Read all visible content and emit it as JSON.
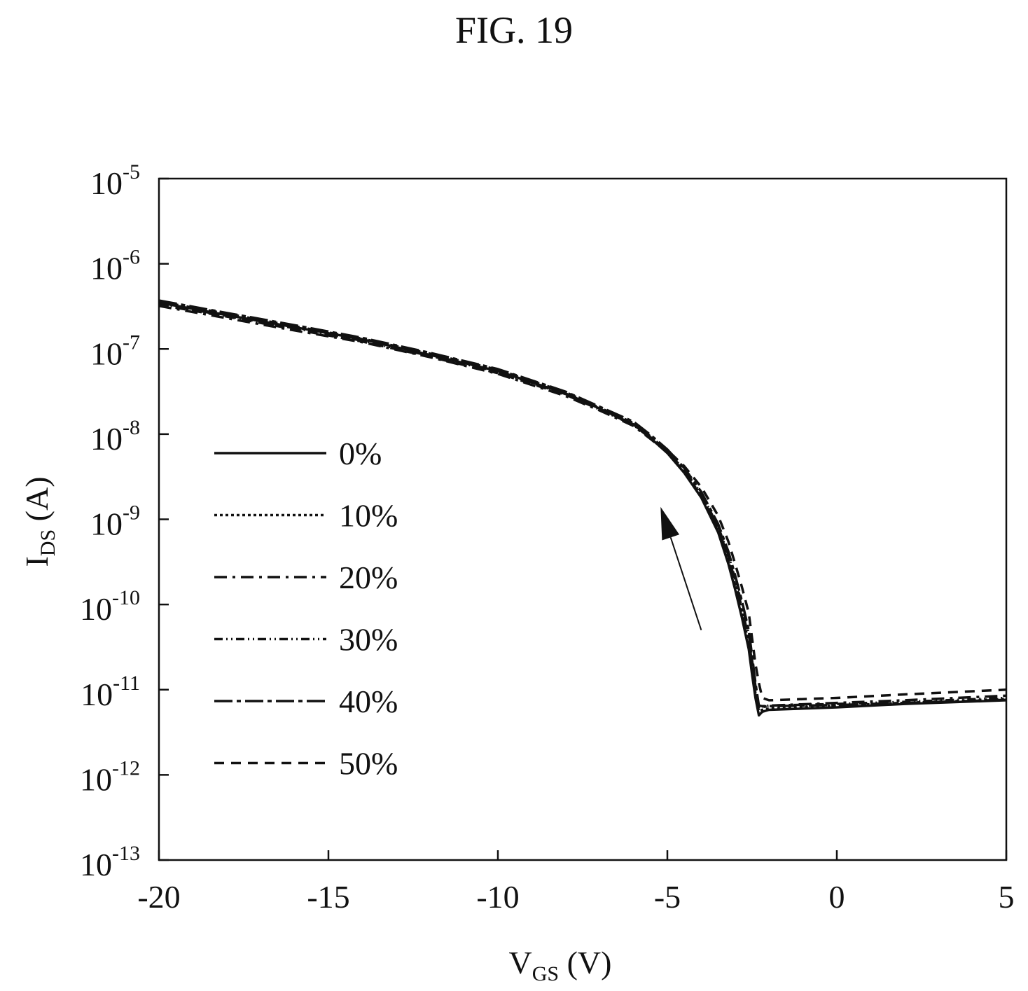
{
  "figure": {
    "title": "FIG. 19"
  },
  "chart_data": {
    "type": "line",
    "xlabel": {
      "main": "V",
      "sub": "GS",
      "unit": " (V)"
    },
    "ylabel": {
      "main": "I",
      "sub": "DS",
      "unit": " (A)"
    },
    "xlim": [
      -20,
      5
    ],
    "ylim_exponent": [
      -13,
      -5
    ],
    "y_scale": "log",
    "x_ticks": [
      {
        "value": -20,
        "label": "-20"
      },
      {
        "value": -15,
        "label": "-15"
      },
      {
        "value": -10,
        "label": "-10"
      },
      {
        "value": -5,
        "label": "-5"
      },
      {
        "value": 0,
        "label": "0"
      },
      {
        "value": 5,
        "label": "5"
      }
    ],
    "y_ticks": [
      {
        "exp": -5,
        "base": "10",
        "sup": "-5"
      },
      {
        "exp": -6,
        "base": "10",
        "sup": "-6"
      },
      {
        "exp": -7,
        "base": "10",
        "sup": "-7"
      },
      {
        "exp": -8,
        "base": "10",
        "sup": "-8"
      },
      {
        "exp": -9,
        "base": "10",
        "sup": "-9"
      },
      {
        "exp": -10,
        "base": "10",
        "sup": "-10"
      },
      {
        "exp": -11,
        "base": "10",
        "sup": "-11"
      },
      {
        "exp": -12,
        "base": "10",
        "sup": "-12"
      },
      {
        "exp": -13,
        "base": "10",
        "sup": "-13"
      }
    ],
    "legend_position": "left",
    "grid": false,
    "annotation": {
      "type": "arrow",
      "direction": "up-left",
      "from": [
        -4.0,
        5e-11
      ],
      "to": [
        -5.2,
        1.4e-09
      ]
    },
    "series": [
      {
        "name": "0%",
        "dash": "",
        "x": [
          -20,
          -18,
          -16,
          -14,
          -12,
          -10,
          -8,
          -7,
          -6,
          -5.5,
          -5,
          -4.5,
          -4,
          -3.5,
          -3.2,
          -3,
          -2.8,
          -2.6,
          -2.5,
          -2.4,
          -2.3,
          -2.2,
          -2,
          0,
          2,
          5
        ],
        "y": [
          3.5e-07,
          2.5e-07,
          1.8e-07,
          1.3e-07,
          8.5e-08,
          5.5e-08,
          3e-08,
          2e-08,
          1.3e-08,
          9e-09,
          6e-09,
          3.5e-09,
          1.8e-09,
          7e-10,
          3e-10,
          1.5e-10,
          7e-11,
          3e-11,
          1.5e-11,
          8e-12,
          5e-12,
          5.5e-12,
          5.8e-12,
          6.2e-12,
          6.8e-12,
          7.5e-12
        ]
      },
      {
        "name": "10%",
        "dash": "4 4",
        "x": [
          -20,
          -18,
          -16,
          -14,
          -12,
          -10,
          -8,
          -7,
          -6,
          -5.5,
          -5,
          -4.5,
          -4,
          -3.5,
          -3.2,
          -3,
          -2.8,
          -2.6,
          -2.5,
          -2.4,
          -2.3,
          -2.2,
          -2,
          0,
          2,
          5
        ],
        "y": [
          3.6e-07,
          2.6e-07,
          1.85e-07,
          1.32e-07,
          8.8e-08,
          5.7e-08,
          3.1e-08,
          2.05e-08,
          1.35e-08,
          9.4e-09,
          6.3e-09,
          3.7e-09,
          1.9e-09,
          7.5e-10,
          3.3e-10,
          1.7e-10,
          8e-11,
          3.5e-11,
          1.8e-11,
          9e-12,
          5.6e-12,
          5.8e-12,
          6e-12,
          6.5e-12,
          7e-12,
          7.8e-12
        ]
      },
      {
        "name": "20%",
        "dash": "18 8 4 8",
        "x": [
          -20,
          -18,
          -16,
          -14,
          -12,
          -10,
          -8,
          -7,
          -6,
          -5.5,
          -5,
          -4.5,
          -4,
          -3.5,
          -3.2,
          -3,
          -2.8,
          -2.6,
          -2.5,
          -2.4,
          -2.3,
          -2.2,
          -2,
          0,
          2,
          5
        ],
        "y": [
          3.2e-07,
          2.3e-07,
          1.65e-07,
          1.2e-07,
          8e-08,
          5.1e-08,
          2.8e-08,
          1.9e-08,
          1.25e-08,
          8.8e-09,
          6.1e-09,
          3.6e-09,
          1.9e-09,
          7.8e-10,
          3.6e-10,
          1.9e-10,
          9e-11,
          4e-11,
          2e-11,
          1e-11,
          6e-12,
          6.2e-12,
          6.5e-12,
          7e-12,
          7.5e-12,
          8.5e-12
        ]
      },
      {
        "name": "30%",
        "dash": "12 5 2 5 2 5",
        "x": [
          -20,
          -18,
          -16,
          -14,
          -12,
          -10,
          -8,
          -7,
          -6,
          -5.5,
          -5,
          -4.5,
          -4,
          -3.5,
          -3.2,
          -3,
          -2.8,
          -2.6,
          -2.5,
          -2.4,
          -2.3,
          -2.2,
          -2,
          0,
          2,
          5
        ],
        "y": [
          3.4e-07,
          2.45e-07,
          1.75e-07,
          1.25e-07,
          8.3e-08,
          5.4e-08,
          2.95e-08,
          1.95e-08,
          1.28e-08,
          9e-09,
          6.2e-09,
          3.8e-09,
          2e-09,
          8.2e-10,
          3.8e-10,
          2e-10,
          1e-10,
          4.5e-11,
          2.2e-11,
          1.1e-11,
          6.2e-12,
          6.3e-12,
          6.5e-12,
          6.8e-12,
          7.2e-12,
          8e-12
        ]
      },
      {
        "name": "40%",
        "dash": "26 6 6 6",
        "x": [
          -20,
          -18,
          -16,
          -14,
          -12,
          -10,
          -8,
          -7,
          -6,
          -5.5,
          -5,
          -4.5,
          -4,
          -3.5,
          -3.2,
          -3,
          -2.8,
          -2.6,
          -2.5,
          -2.4,
          -2.3,
          -2.2,
          -2,
          0,
          2,
          5
        ],
        "y": [
          3.7e-07,
          2.65e-07,
          1.9e-07,
          1.35e-07,
          9e-08,
          5.8e-08,
          3.15e-08,
          2.1e-08,
          1.4e-08,
          9.8e-09,
          6.6e-09,
          4e-09,
          2.1e-09,
          8.8e-10,
          4.2e-10,
          2.2e-10,
          1.1e-10,
          5e-11,
          2.5e-11,
          1.2e-11,
          6.5e-12,
          6.4e-12,
          6.4e-12,
          6.6e-12,
          7e-12,
          7.6e-12
        ]
      },
      {
        "name": "50%",
        "dash": "14 10",
        "x": [
          -20,
          -18,
          -16,
          -14,
          -12,
          -10,
          -8,
          -7,
          -6,
          -5.5,
          -5,
          -4.5,
          -4,
          -3.5,
          -3.2,
          -3,
          -2.8,
          -2.6,
          -2.5,
          -2.4,
          -2.3,
          -2.2,
          -2,
          0,
          2,
          5
        ],
        "y": [
          3.3e-07,
          2.4e-07,
          1.7e-07,
          1.22e-07,
          8.1e-08,
          5.2e-08,
          2.9e-08,
          1.95e-08,
          1.3e-08,
          9.2e-09,
          6.5e-09,
          4.2e-09,
          2.4e-09,
          1.1e-09,
          5.5e-10,
          3e-10,
          1.6e-10,
          8e-11,
          4e-11,
          2e-11,
          1.2e-11,
          8e-12,
          7.5e-12,
          8e-12,
          8.8e-12,
          1e-11
        ]
      }
    ]
  }
}
